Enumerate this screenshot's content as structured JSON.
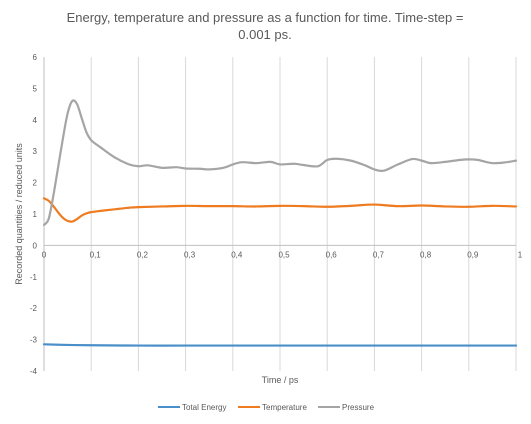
{
  "chart_data": {
    "type": "line",
    "title_lines": [
      "Energy, temperature and pressure as a function for time. Time-step =",
      "0.001 ps."
    ],
    "xlabel": "Time / ps",
    "ylabel": "Recorded quantities / reduced units",
    "xlim": [
      0,
      1
    ],
    "ylim": [
      -4,
      6
    ],
    "x_ticks": [
      0,
      0.1,
      0.2,
      0.3,
      0.4,
      0.5,
      0.6,
      0.7,
      0.8,
      0.9,
      1
    ],
    "x_tick_labels": [
      "0",
      "0,1",
      "0,2",
      "0,3",
      "0,4",
      "0,5",
      "0,6",
      "0,7",
      "0,8",
      "0,9",
      "1"
    ],
    "y_ticks": [
      -4,
      -3,
      -2,
      -1,
      0,
      1,
      2,
      3,
      4,
      5,
      6
    ],
    "y_tick_labels": [
      "-4",
      "-3",
      "-2",
      "-1",
      "0",
      "1",
      "2",
      "3",
      "4",
      "5",
      "6"
    ],
    "x_axis_at_y": 0,
    "grid": "vertical",
    "legend_position": "bottom",
    "series": [
      {
        "name": "Total Energy",
        "color": "#4a8fc9",
        "x": [
          0,
          0.05,
          0.1,
          0.2,
          0.3,
          0.4,
          0.5,
          0.6,
          0.7,
          0.8,
          0.9,
          1
        ],
        "y": [
          -3.15,
          -3.17,
          -3.18,
          -3.19,
          -3.19,
          -3.19,
          -3.19,
          -3.19,
          -3.19,
          -3.19,
          -3.19,
          -3.19
        ]
      },
      {
        "name": "Temperature",
        "color": "#ee7b1f",
        "x": [
          0,
          0.01,
          0.02,
          0.03,
          0.04,
          0.05,
          0.06,
          0.07,
          0.08,
          0.09,
          0.1,
          0.12,
          0.15,
          0.18,
          0.2,
          0.25,
          0.3,
          0.35,
          0.4,
          0.45,
          0.5,
          0.55,
          0.6,
          0.65,
          0.7,
          0.75,
          0.8,
          0.85,
          0.9,
          0.95,
          1
        ],
        "y": [
          1.5,
          1.42,
          1.25,
          1.05,
          0.88,
          0.78,
          0.76,
          0.84,
          0.95,
          1.02,
          1.06,
          1.1,
          1.15,
          1.2,
          1.22,
          1.24,
          1.26,
          1.25,
          1.25,
          1.24,
          1.26,
          1.25,
          1.23,
          1.26,
          1.3,
          1.25,
          1.27,
          1.24,
          1.23,
          1.26,
          1.24
        ]
      },
      {
        "name": "Pressure",
        "color": "#a5a5a5",
        "x": [
          0,
          0.01,
          0.02,
          0.03,
          0.04,
          0.05,
          0.06,
          0.07,
          0.08,
          0.09,
          0.1,
          0.12,
          0.15,
          0.18,
          0.2,
          0.22,
          0.25,
          0.28,
          0.3,
          0.33,
          0.35,
          0.38,
          0.4,
          0.42,
          0.45,
          0.48,
          0.5,
          0.53,
          0.55,
          0.58,
          0.6,
          0.62,
          0.65,
          0.68,
          0.7,
          0.72,
          0.75,
          0.78,
          0.8,
          0.82,
          0.85,
          0.88,
          0.9,
          0.92,
          0.95,
          0.98,
          1
        ],
        "y": [
          0.65,
          0.85,
          1.6,
          2.5,
          3.4,
          4.2,
          4.6,
          4.5,
          4.05,
          3.6,
          3.35,
          3.12,
          2.8,
          2.58,
          2.52,
          2.55,
          2.47,
          2.49,
          2.45,
          2.44,
          2.42,
          2.47,
          2.58,
          2.65,
          2.62,
          2.66,
          2.58,
          2.6,
          2.56,
          2.52,
          2.72,
          2.76,
          2.7,
          2.55,
          2.42,
          2.38,
          2.58,
          2.75,
          2.7,
          2.62,
          2.66,
          2.72,
          2.74,
          2.72,
          2.62,
          2.65,
          2.7
        ]
      }
    ]
  }
}
